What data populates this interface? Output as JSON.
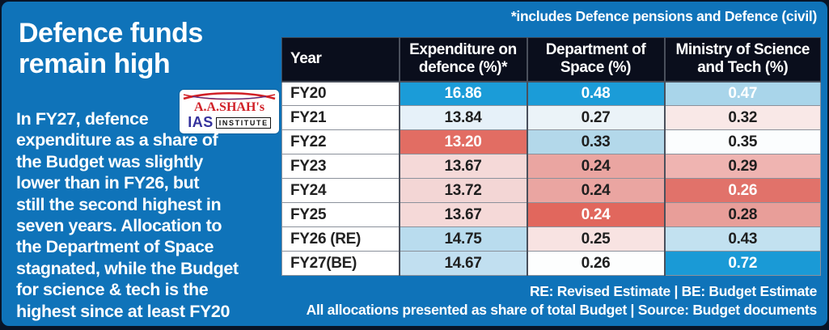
{
  "page": {
    "background_color": "#0f73b9",
    "edge_color": "#081427",
    "header_bg_color": "#0a0e1c"
  },
  "headline": {
    "title": "Defence funds\nremain high",
    "body": "In FY27, defence\nexpenditure as a share of\nthe Budget was slightly\nlower than in FY26, but\nstill the second highest in\nseven years. Allocation to\nthe Department of Space\nstagnated, while the Budget\nfor science & tech is the\nhighest since at least FY20"
  },
  "logo": {
    "brand": "A.A.SHAH's",
    "ias": "IAS",
    "institute": "INSTITUTE",
    "brand_color": "#d01f26",
    "ias_color": "#34319c"
  },
  "notes": {
    "top": "*includes Defence pensions and Defence (civil)",
    "bottom1": "RE: Revised Estimate | BE: Budget Estimate",
    "bottom2": "All allocations presented as share of total Budget | Source: Budget documents"
  },
  "table": {
    "columns": [
      "Year",
      "Expenditure on\ndefence (%)*",
      "Department of\nSpace (%)",
      "Ministry of Science\nand Tech (%)"
    ],
    "rows": [
      {
        "year": "FY20",
        "cells": [
          {
            "v": "16.86",
            "bg": "#1b9cd8",
            "fg": "#ffffff"
          },
          {
            "v": "0.48",
            "bg": "#1b9cd8",
            "fg": "#ffffff"
          },
          {
            "v": "0.47",
            "bg": "#a9d5ea",
            "fg": "#ffffff"
          }
        ]
      },
      {
        "year": "FY21",
        "cells": [
          {
            "v": "13.84",
            "bg": "#e6f1f9",
            "fg": "#1f1f1f"
          },
          {
            "v": "0.27",
            "bg": "#ebf3f8",
            "fg": "#1f1f1f"
          },
          {
            "v": "0.32",
            "bg": "#f9e8e7",
            "fg": "#1f1f1f"
          }
        ]
      },
      {
        "year": "FY22",
        "cells": [
          {
            "v": "13.20",
            "bg": "#e26d63",
            "fg": "#ffffff"
          },
          {
            "v": "0.33",
            "bg": "#b3d8ea",
            "fg": "#1f1f1f"
          },
          {
            "v": "0.35",
            "bg": "#fbfdfe",
            "fg": "#1f1f1f"
          }
        ]
      },
      {
        "year": "FY23",
        "cells": [
          {
            "v": "13.67",
            "bg": "#f5d9d8",
            "fg": "#1f1f1f"
          },
          {
            "v": "0.24",
            "bg": "#eaa5a1",
            "fg": "#1f1f1f"
          },
          {
            "v": "0.29",
            "bg": "#efb4b1",
            "fg": "#1f1f1f"
          }
        ]
      },
      {
        "year": "FY24",
        "cells": [
          {
            "v": "13.72",
            "bg": "#f3d6d5",
            "fg": "#1f1f1f"
          },
          {
            "v": "0.24",
            "bg": "#eaa5a1",
            "fg": "#1f1f1f"
          },
          {
            "v": "0.26",
            "bg": "#e1726a",
            "fg": "#ffffff"
          }
        ]
      },
      {
        "year": "FY25",
        "cells": [
          {
            "v": "13.67",
            "bg": "#f5d9d8",
            "fg": "#1f1f1f"
          },
          {
            "v": "0.24",
            "bg": "#e1675d",
            "fg": "#ffffff"
          },
          {
            "v": "0.28",
            "bg": "#e89e99",
            "fg": "#1f1f1f"
          }
        ]
      },
      {
        "year": "FY26 (RE)",
        "cells": [
          {
            "v": "14.75",
            "bg": "#b9dcee",
            "fg": "#1f1f1f"
          },
          {
            "v": "0.25",
            "bg": "#f8e3e2",
            "fg": "#1f1f1f"
          },
          {
            "v": "0.43",
            "bg": "#c2e1f0",
            "fg": "#1f1f1f"
          }
        ]
      },
      {
        "year": "FY27(BE)",
        "cells": [
          {
            "v": "14.67",
            "bg": "#c1dff0",
            "fg": "#1f1f1f"
          },
          {
            "v": "0.26",
            "bg": "#fdfefe",
            "fg": "#1f1f1f"
          },
          {
            "v": "0.72",
            "bg": "#1a9ad6",
            "fg": "#ffffff"
          }
        ]
      }
    ]
  },
  "chart_data": {
    "type": "table",
    "title": "Defence funds remain high",
    "columns": [
      "Year",
      "Expenditure on defence (%)*",
      "Department of Space (%)",
      "Ministry of Science and Tech (%)"
    ],
    "categories": [
      "FY20",
      "FY21",
      "FY22",
      "FY23",
      "FY24",
      "FY25",
      "FY26 (RE)",
      "FY27(BE)"
    ],
    "series": [
      {
        "name": "Expenditure on defence (%)*",
        "values": [
          16.86,
          13.84,
          13.2,
          13.67,
          13.72,
          13.67,
          14.75,
          14.67
        ]
      },
      {
        "name": "Department of Space (%)",
        "values": [
          0.48,
          0.27,
          0.33,
          0.24,
          0.24,
          0.24,
          0.25,
          0.26
        ]
      },
      {
        "name": "Ministry of Science and Tech (%)",
        "values": [
          0.47,
          0.32,
          0.35,
          0.29,
          0.26,
          0.28,
          0.43,
          0.72
        ]
      }
    ],
    "notes": [
      "*includes Defence pensions and Defence (civil)",
      "RE: Revised Estimate | BE: Budget Estimate",
      "All allocations presented as share of total Budget | Source: Budget documents"
    ],
    "color_encoding": "heatmap: blue = high years, red = low years per column"
  }
}
